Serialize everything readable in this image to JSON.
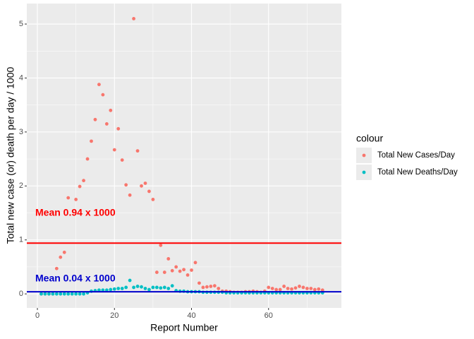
{
  "chart_data": {
    "type": "scatter",
    "x_label": "Report Number",
    "y_label": "Total new case (or) death per day / 1000",
    "legend_title": "colour",
    "x": [
      1,
      2,
      3,
      4,
      5,
      6,
      7,
      8,
      9,
      10,
      11,
      12,
      13,
      14,
      15,
      16,
      17,
      18,
      19,
      20,
      21,
      22,
      23,
      24,
      25,
      26,
      27,
      28,
      29,
      30,
      31,
      32,
      33,
      34,
      35,
      36,
      37,
      38,
      39,
      40,
      41,
      42,
      43,
      44,
      45,
      46,
      47,
      48,
      49,
      50,
      51,
      52,
      53,
      54,
      55,
      56,
      57,
      58,
      59,
      60,
      61,
      62,
      63,
      64,
      65,
      66,
      67,
      68,
      69,
      70,
      71,
      72,
      73,
      74
    ],
    "series": [
      {
        "name": "Total New Cases/Day",
        "color": "#F8766D",
        "values": [
          0,
          0,
          0,
          0,
          0.47,
          0.68,
          0.77,
          1.78,
          null,
          1.75,
          1.99,
          2.1,
          2.5,
          2.83,
          3.23,
          3.88,
          3.69,
          3.15,
          3.4,
          2.67,
          3.06,
          2.48,
          2.02,
          1.83,
          5.1,
          2.65,
          2.0,
          2.05,
          1.9,
          1.75,
          0.4,
          0.9,
          0.4,
          0.65,
          0.43,
          0.5,
          0.42,
          0.45,
          0.35,
          0.44,
          0.58,
          0.2,
          0.12,
          0.13,
          0.14,
          0.15,
          0.1,
          0.05,
          0.05,
          0.04,
          0.03,
          0.03,
          0.03,
          0.04,
          0.04,
          0.05,
          0.04,
          0.03,
          0.05,
          0.12,
          0.1,
          0.08,
          0.08,
          0.14,
          0.1,
          0.09,
          0.11,
          0.14,
          0.12,
          0.1,
          0.1,
          0.08,
          0.09,
          0.07
        ]
      },
      {
        "name": "Total New Deaths/Day",
        "color": "#00BFC4",
        "values": [
          0,
          0,
          0,
          0,
          0,
          0,
          0,
          0,
          0,
          0,
          0,
          0,
          0.02,
          0.05,
          0.06,
          0.07,
          0.07,
          0.07,
          0.08,
          0.09,
          0.1,
          0.1,
          0.12,
          0.25,
          0.12,
          0.14,
          0.13,
          0.1,
          0.08,
          0.12,
          0.12,
          0.11,
          0.12,
          0.1,
          0.15,
          0.06,
          0.05,
          0.05,
          0.04,
          0.04,
          0.04,
          0.04,
          0.03,
          0.03,
          0.03,
          0.03,
          0.03,
          0.03,
          0.02,
          0.02,
          0.02,
          0.02,
          0.02,
          0.02,
          0.02,
          0.02,
          0.02,
          0.02,
          0.02,
          0.02,
          0.02,
          0.02,
          0.02,
          0.02,
          0.02,
          0.02,
          0.02,
          0.02,
          0.02,
          0.02,
          0.02,
          0.02,
          0.02,
          0.02
        ]
      }
    ],
    "hlines": [
      {
        "value": 0.94,
        "color": "#FF0000"
      },
      {
        "value": 0.04,
        "color": "#0000CD"
      }
    ],
    "annotations": [
      "Mean 0.94 x 1000",
      "Mean 0.04 x 1000"
    ],
    "xlim": [
      -2.75,
      78.9
    ],
    "ylim": [
      -0.26,
      5.38
    ],
    "xticks": [
      0,
      20,
      40,
      60
    ],
    "yticks": [
      0,
      1,
      2,
      3,
      4,
      5
    ],
    "grid": true
  }
}
